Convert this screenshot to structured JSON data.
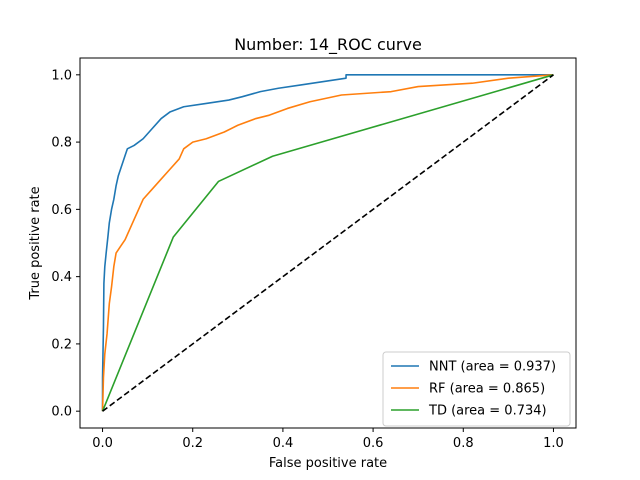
{
  "chart_data": {
    "type": "line",
    "title": "Number: 14_ROC curve",
    "xlabel": "False positive rate",
    "ylabel": "True positive rate",
    "xlim": [
      -0.05,
      1.05
    ],
    "ylim": [
      -0.05,
      1.05
    ],
    "xticks": [
      "0.0",
      "0.2",
      "0.4",
      "0.6",
      "0.8",
      "1.0"
    ],
    "yticks": [
      "0.0",
      "0.2",
      "0.4",
      "0.6",
      "0.8",
      "1.0"
    ],
    "grid": false,
    "legend_position": "bottom-right",
    "series": [
      {
        "name": "NNT (area = 0.937)",
        "color": "#1f77b4",
        "points": [
          [
            0,
            0
          ],
          [
            0,
            0.1
          ],
          [
            0.002,
            0.25
          ],
          [
            0.003,
            0.38
          ],
          [
            0.005,
            0.43
          ],
          [
            0.008,
            0.47
          ],
          [
            0.012,
            0.52
          ],
          [
            0.015,
            0.56
          ],
          [
            0.02,
            0.6
          ],
          [
            0.025,
            0.63
          ],
          [
            0.03,
            0.67
          ],
          [
            0.035,
            0.7
          ],
          [
            0.04,
            0.72
          ],
          [
            0.045,
            0.74
          ],
          [
            0.05,
            0.76
          ],
          [
            0.055,
            0.78
          ],
          [
            0.07,
            0.79
          ],
          [
            0.09,
            0.81
          ],
          [
            0.11,
            0.84
          ],
          [
            0.13,
            0.87
          ],
          [
            0.15,
            0.89
          ],
          [
            0.18,
            0.905
          ],
          [
            0.23,
            0.915
          ],
          [
            0.28,
            0.925
          ],
          [
            0.31,
            0.935
          ],
          [
            0.35,
            0.95
          ],
          [
            0.39,
            0.96
          ],
          [
            0.44,
            0.97
          ],
          [
            0.54,
            0.99
          ],
          [
            0.54,
            1.0
          ],
          [
            1.0,
            1.0
          ]
        ]
      },
      {
        "name": "RF (area = 0.865)",
        "color": "#ff7f0e",
        "points": [
          [
            0,
            0
          ],
          [
            0.002,
            0.1
          ],
          [
            0.005,
            0.17
          ],
          [
            0.01,
            0.23
          ],
          [
            0.015,
            0.32
          ],
          [
            0.02,
            0.37
          ],
          [
            0.025,
            0.43
          ],
          [
            0.03,
            0.47
          ],
          [
            0.04,
            0.49
          ],
          [
            0.05,
            0.51
          ],
          [
            0.06,
            0.54
          ],
          [
            0.07,
            0.57
          ],
          [
            0.09,
            0.63
          ],
          [
            0.11,
            0.66
          ],
          [
            0.13,
            0.69
          ],
          [
            0.15,
            0.72
          ],
          [
            0.17,
            0.75
          ],
          [
            0.18,
            0.78
          ],
          [
            0.2,
            0.8
          ],
          [
            0.23,
            0.81
          ],
          [
            0.25,
            0.82
          ],
          [
            0.27,
            0.83
          ],
          [
            0.3,
            0.85
          ],
          [
            0.34,
            0.87
          ],
          [
            0.37,
            0.88
          ],
          [
            0.41,
            0.9
          ],
          [
            0.46,
            0.92
          ],
          [
            0.53,
            0.94
          ],
          [
            0.64,
            0.95
          ],
          [
            0.7,
            0.965
          ],
          [
            0.82,
            0.975
          ],
          [
            0.9,
            0.99
          ],
          [
            1.0,
            1.0
          ]
        ]
      },
      {
        "name": "TD (area = 0.734)",
        "color": "#2ca02c",
        "points": [
          [
            0,
            0
          ],
          [
            0.157,
            0.518
          ],
          [
            0.257,
            0.683
          ],
          [
            0.377,
            0.758
          ],
          [
            1.0,
            1.0
          ]
        ]
      },
      {
        "name": "",
        "color": "#000000",
        "dashed": true,
        "points": [
          [
            0,
            0
          ],
          [
            1,
            1
          ]
        ]
      }
    ]
  }
}
